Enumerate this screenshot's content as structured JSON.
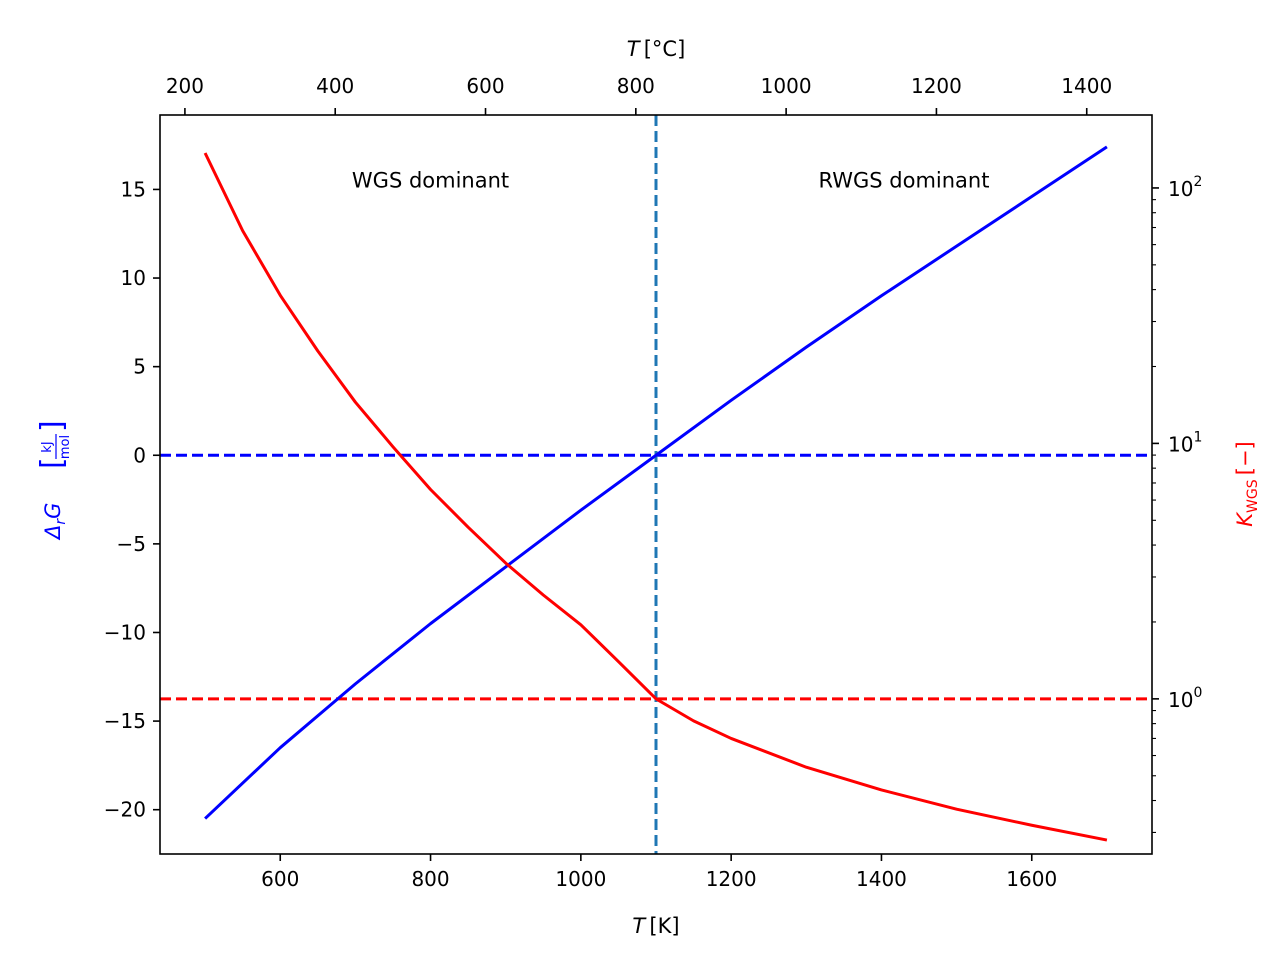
{
  "chart_data": {
    "type": "line",
    "title": "",
    "x": {
      "label_var": "T",
      "label_unit": "[K]",
      "lim": [
        440,
        1760
      ],
      "ticks": [
        600,
        800,
        1000,
        1200,
        1400,
        1600
      ]
    },
    "x_top": {
      "label_var": "T",
      "label_unit": "[°C]",
      "lim": [
        166.85,
        1486.85
      ],
      "ticks": [
        200,
        400,
        600,
        800,
        1000,
        1200,
        1400
      ]
    },
    "y_left": {
      "label_prefix": "Δ",
      "label_sub": "r",
      "label_var": "G",
      "label_unit_num": "kJ",
      "label_unit_den": "mol",
      "lim": [
        -22.5,
        19.2
      ],
      "ticks": [
        15,
        10,
        5,
        0,
        -5,
        -10,
        -15,
        -20
      ],
      "color": "#0000ff"
    },
    "y_right": {
      "label_var": "K",
      "label_sub": "WGS",
      "label_unit": "[−]",
      "scale": "log",
      "lim": [
        0.247,
        193
      ],
      "major_ticks": [
        1,
        10,
        100
      ],
      "major_labels": [
        {
          "base": "10",
          "exp": "0"
        },
        {
          "base": "10",
          "exp": "1"
        },
        {
          "base": "10",
          "exp": "2"
        }
      ],
      "color": "#ff0000"
    },
    "series": [
      {
        "name": "ΔrG",
        "axis": "left",
        "color": "#0000ff",
        "x": [
          500,
          600,
          700,
          800,
          900,
          1000,
          1100,
          1200,
          1300,
          1400,
          1500,
          1600,
          1700
        ],
        "y": [
          -20.5,
          -16.5,
          -12.9,
          -9.5,
          -6.3,
          -3.1,
          0.0,
          3.1,
          6.1,
          9.0,
          11.8,
          14.6,
          17.4
        ]
      },
      {
        "name": "K_WGS",
        "axis": "right",
        "color": "#ff0000",
        "x": [
          500,
          550,
          600,
          650,
          700,
          750,
          800,
          850,
          900,
          950,
          1000,
          1050,
          1100,
          1150,
          1200,
          1300,
          1400,
          1500,
          1600,
          1700
        ],
        "y": [
          137,
          68,
          38,
          23,
          14.5,
          9.7,
          6.6,
          4.7,
          3.4,
          2.55,
          1.95,
          1.4,
          1.0,
          0.82,
          0.7,
          0.54,
          0.44,
          0.37,
          0.32,
          0.28
        ]
      }
    ],
    "reference_lines": [
      {
        "orientation": "horizontal",
        "axis": "left",
        "value": 0,
        "color": "#0000ff",
        "style": "dashed"
      },
      {
        "orientation": "horizontal",
        "axis": "right",
        "value": 1,
        "color": "#ff0000",
        "style": "dashed"
      },
      {
        "orientation": "vertical",
        "axis": "bottom",
        "value": 1100,
        "color": "#1f77b4",
        "style": "dashed"
      }
    ],
    "annotations": [
      {
        "text": "WGS dominant",
        "x": 800,
        "y": 15.5
      },
      {
        "text": "RWGS dominant",
        "x": 1430,
        "y": 15.5
      }
    ]
  }
}
